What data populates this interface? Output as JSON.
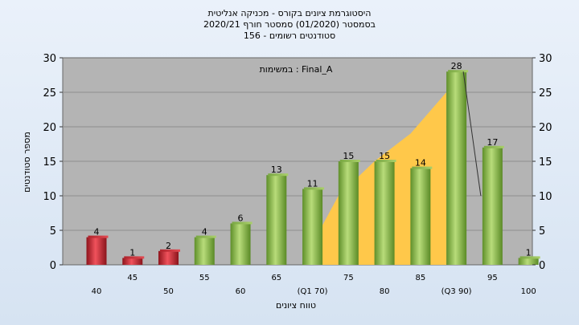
{
  "chart_data": {
    "type": "bar",
    "title_lines": [
      "היסטוגרמת ציונים בקורס - מכניקה אנליטית",
      "בסמסטר  (01/2020)  סמסטר חורף  2020/21",
      "סטודנטים רשומים - 156"
    ],
    "annotation": "במשימות : Final_A",
    "xlabel": "טווח ציונים",
    "ylabel": "מספר סטודנטים",
    "ylim": [
      0,
      30
    ],
    "y_ticks": [
      0,
      5,
      10,
      15,
      20,
      25,
      30
    ],
    "categories": [
      "40",
      "45",
      "50",
      "55",
      "60",
      "65",
      "(Q1 70)",
      "75",
      "80",
      "85",
      "(Q3 90)",
      "95",
      "100"
    ],
    "values": [
      4,
      1,
      2,
      4,
      6,
      13,
      11,
      15,
      15,
      14,
      28,
      17,
      1
    ],
    "data_labels": [
      "4",
      "1",
      "2",
      "4",
      "6",
      "13",
      "11",
      "15",
      "15",
      "14",
      "28",
      "17",
      "1"
    ],
    "fail_bar_count": 3,
    "box_overlay": {
      "from_category": "70",
      "to_category": "90",
      "shape": [
        [
          0,
          0
        ],
        [
          0.12,
          5
        ],
        [
          0.25,
          10
        ],
        [
          0.5,
          15
        ],
        [
          0.75,
          19
        ],
        [
          1,
          25
        ]
      ]
    },
    "whisker": {
      "from_value": 28,
      "to_value": 10
    },
    "grid": true,
    "colors": {
      "plot_bg": "#b4b4b4",
      "fail_bar": "#d42a35",
      "pass_bar": "#8dbd4f",
      "overlay": "#ffc84a",
      "grid": "#8e8e8e"
    }
  }
}
